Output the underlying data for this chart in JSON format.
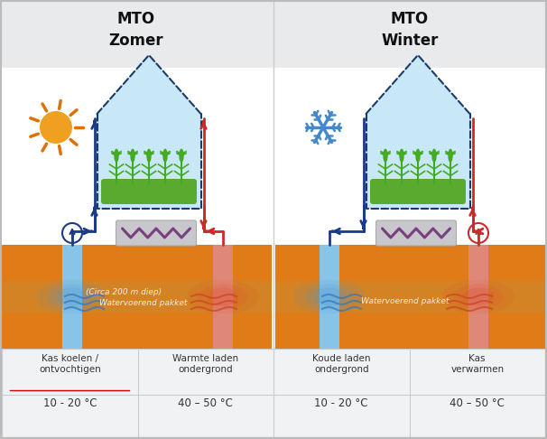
{
  "title_left": "MTO\nZomer",
  "title_right": "MTO\nWinter",
  "bg_header": "#e8eaec",
  "bg_main": "#ffffff",
  "bg_table": "#f0f2f4",
  "orange_ground": "#e07c18",
  "orange_dark": "#c86a10",
  "blue_well": "#7abde0",
  "red_well": "#e08070",
  "blue_pipe": "#1a3a8a",
  "red_pipe": "#cc2a2a",
  "green_plant": "#4aa828",
  "green_ground": "#5aaa30",
  "light_blue_house": "#c8e8f8",
  "gray_heatex": "#c0c0c8",
  "purple_zigzag": "#784080",
  "table_labels": [
    "Kas koelen /\nontvochtigen",
    "Warmte laden\nondergrond",
    "Koude laden\nondergrond",
    "Kas\nverwarmen"
  ],
  "table_temps": [
    "10 - 20 °C",
    "40 – 50 °C",
    "10 - 20 °C",
    "40 – 50 °C"
  ],
  "watervoerend_left": "Watervoerend pakket",
  "watervoerend_left2": "(Circa 200 m diep)",
  "watervoerend_right": "Watervoerend pakket",
  "sun_color": "#f0a020",
  "sun_ray_color": "#e07000",
  "snow_color": "#4488cc"
}
